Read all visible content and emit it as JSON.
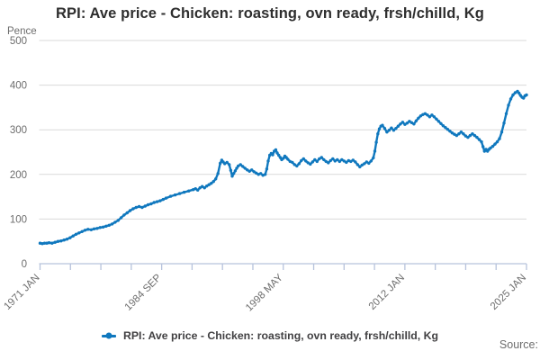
{
  "title": "RPI: Ave price - Chicken: roasting, ovn ready, frsh/chilld, Kg",
  "y_axis_label": "Pence",
  "source_label": "Source:",
  "legend": {
    "marker_icon": "line-with-dot-icon",
    "label": "RPI: Ave price - Chicken: roasting, ovn ready, frsh/chilld, Kg"
  },
  "colors": {
    "line": "#1078be",
    "grid": "#d9d9d9",
    "axis": "#b7c3dc",
    "tick_text": "#6d6d6d",
    "title_text": "#2e2e2e",
    "legend_text": "#414042"
  },
  "chart_data": {
    "type": "line",
    "title": "RPI: Ave price - Chicken: roasting, ovn ready, frsh/chilld, Kg",
    "xlabel": "",
    "ylabel": "Pence",
    "ylim": [
      0,
      500
    ],
    "yticks": [
      0,
      100,
      200,
      300,
      400,
      500
    ],
    "grid": "horizontal",
    "legend_position": "bottom-center",
    "x_range_years": [
      1971.0,
      2025.0
    ],
    "xtick_count": 17,
    "xtick_labels": [
      {
        "pos": 0,
        "label": "1971 JAN"
      },
      {
        "pos": 4,
        "label": "1984 SEP"
      },
      {
        "pos": 8,
        "label": "1998 MAY"
      },
      {
        "pos": 12,
        "label": "2012 JAN"
      },
      {
        "pos": 16,
        "label": "2025 JAN"
      }
    ],
    "series": [
      {
        "name": "RPI: Ave price - Chicken: roasting, ovn ready, frsh/chilld, Kg",
        "points": [
          [
            1971.0,
            46
          ],
          [
            1971.25,
            45
          ],
          [
            1971.5,
            46
          ],
          [
            1971.75,
            46
          ],
          [
            1972.0,
            47
          ],
          [
            1972.33,
            46
          ],
          [
            1972.67,
            48
          ],
          [
            1973.0,
            50
          ],
          [
            1973.33,
            51
          ],
          [
            1973.67,
            53
          ],
          [
            1974.0,
            55
          ],
          [
            1974.33,
            58
          ],
          [
            1974.67,
            62
          ],
          [
            1975.0,
            66
          ],
          [
            1975.33,
            69
          ],
          [
            1975.67,
            72
          ],
          [
            1976.0,
            75
          ],
          [
            1976.33,
            77
          ],
          [
            1976.67,
            76
          ],
          [
            1977.0,
            78
          ],
          [
            1977.33,
            79
          ],
          [
            1977.67,
            81
          ],
          [
            1978.0,
            82
          ],
          [
            1978.33,
            84
          ],
          [
            1978.67,
            86
          ],
          [
            1979.0,
            89
          ],
          [
            1979.33,
            93
          ],
          [
            1979.67,
            97
          ],
          [
            1980.0,
            103
          ],
          [
            1980.33,
            109
          ],
          [
            1980.67,
            114
          ],
          [
            1981.0,
            119
          ],
          [
            1981.33,
            123
          ],
          [
            1981.67,
            126
          ],
          [
            1982.0,
            128
          ],
          [
            1982.33,
            126
          ],
          [
            1982.67,
            129
          ],
          [
            1983.0,
            132
          ],
          [
            1983.33,
            134
          ],
          [
            1983.67,
            137
          ],
          [
            1984.0,
            139
          ],
          [
            1984.33,
            141
          ],
          [
            1984.67,
            144
          ],
          [
            1985.0,
            147
          ],
          [
            1985.5,
            151
          ],
          [
            1986.0,
            154
          ],
          [
            1986.5,
            157
          ],
          [
            1987.0,
            160
          ],
          [
            1987.5,
            163
          ],
          [
            1988.0,
            166
          ],
          [
            1988.25,
            168
          ],
          [
            1988.5,
            165
          ],
          [
            1988.75,
            170
          ],
          [
            1989.0,
            173
          ],
          [
            1989.25,
            170
          ],
          [
            1989.5,
            174
          ],
          [
            1989.75,
            177
          ],
          [
            1990.0,
            180
          ],
          [
            1990.25,
            184
          ],
          [
            1990.5,
            190
          ],
          [
            1990.75,
            202
          ],
          [
            1991.0,
            225
          ],
          [
            1991.17,
            232
          ],
          [
            1991.33,
            228
          ],
          [
            1991.5,
            224
          ],
          [
            1991.75,
            227
          ],
          [
            1992.0,
            222
          ],
          [
            1992.17,
            209
          ],
          [
            1992.33,
            196
          ],
          [
            1992.5,
            202
          ],
          [
            1992.67,
            208
          ],
          [
            1992.83,
            214
          ],
          [
            1993.0,
            219
          ],
          [
            1993.25,
            222
          ],
          [
            1993.5,
            218
          ],
          [
            1993.75,
            214
          ],
          [
            1994.0,
            210
          ],
          [
            1994.25,
            207
          ],
          [
            1994.5,
            210
          ],
          [
            1994.75,
            206
          ],
          [
            1995.0,
            203
          ],
          [
            1995.25,
            200
          ],
          [
            1995.5,
            202
          ],
          [
            1995.75,
            198
          ],
          [
            1996.0,
            200
          ],
          [
            1996.17,
            212
          ],
          [
            1996.33,
            230
          ],
          [
            1996.5,
            243
          ],
          [
            1996.67,
            247
          ],
          [
            1996.83,
            244
          ],
          [
            1997.0,
            252
          ],
          [
            1997.17,
            255
          ],
          [
            1997.33,
            248
          ],
          [
            1997.5,
            243
          ],
          [
            1997.67,
            238
          ],
          [
            1997.83,
            233
          ],
          [
            1998.0,
            236
          ],
          [
            1998.17,
            241
          ],
          [
            1998.33,
            238
          ],
          [
            1998.5,
            234
          ],
          [
            1998.75,
            229
          ],
          [
            1999.0,
            227
          ],
          [
            1999.25,
            222
          ],
          [
            1999.5,
            219
          ],
          [
            1999.75,
            224
          ],
          [
            2000.0,
            231
          ],
          [
            2000.25,
            235
          ],
          [
            2000.5,
            230
          ],
          [
            2000.75,
            226
          ],
          [
            2001.0,
            223
          ],
          [
            2001.25,
            228
          ],
          [
            2001.5,
            233
          ],
          [
            2001.75,
            229
          ],
          [
            2002.0,
            235
          ],
          [
            2002.25,
            238
          ],
          [
            2002.5,
            233
          ],
          [
            2002.75,
            229
          ],
          [
            2003.0,
            226
          ],
          [
            2003.25,
            231
          ],
          [
            2003.5,
            235
          ],
          [
            2003.75,
            230
          ],
          [
            2004.0,
            233
          ],
          [
            2004.25,
            229
          ],
          [
            2004.5,
            233
          ],
          [
            2004.75,
            230
          ],
          [
            2005.0,
            227
          ],
          [
            2005.25,
            231
          ],
          [
            2005.5,
            229
          ],
          [
            2005.75,
            232
          ],
          [
            2006.0,
            228
          ],
          [
            2006.25,
            222
          ],
          [
            2006.5,
            217
          ],
          [
            2006.75,
            221
          ],
          [
            2007.0,
            224
          ],
          [
            2007.25,
            228
          ],
          [
            2007.5,
            225
          ],
          [
            2007.75,
            230
          ],
          [
            2008.0,
            237
          ],
          [
            2008.17,
            252
          ],
          [
            2008.33,
            272
          ],
          [
            2008.5,
            291
          ],
          [
            2008.67,
            302
          ],
          [
            2008.83,
            308
          ],
          [
            2009.0,
            310
          ],
          [
            2009.25,
            303
          ],
          [
            2009.5,
            295
          ],
          [
            2009.75,
            299
          ],
          [
            2010.0,
            304
          ],
          [
            2010.25,
            299
          ],
          [
            2010.5,
            303
          ],
          [
            2010.75,
            308
          ],
          [
            2011.0,
            313
          ],
          [
            2011.25,
            317
          ],
          [
            2011.5,
            312
          ],
          [
            2011.75,
            315
          ],
          [
            2012.0,
            319
          ],
          [
            2012.25,
            316
          ],
          [
            2012.5,
            313
          ],
          [
            2012.75,
            320
          ],
          [
            2013.0,
            326
          ],
          [
            2013.25,
            331
          ],
          [
            2013.5,
            334
          ],
          [
            2013.75,
            336
          ],
          [
            2014.0,
            333
          ],
          [
            2014.25,
            329
          ],
          [
            2014.5,
            333
          ],
          [
            2014.75,
            329
          ],
          [
            2015.0,
            324
          ],
          [
            2015.25,
            319
          ],
          [
            2015.5,
            314
          ],
          [
            2015.75,
            309
          ],
          [
            2016.0,
            305
          ],
          [
            2016.25,
            301
          ],
          [
            2016.5,
            297
          ],
          [
            2016.75,
            293
          ],
          [
            2017.0,
            290
          ],
          [
            2017.25,
            287
          ],
          [
            2017.5,
            291
          ],
          [
            2017.75,
            295
          ],
          [
            2018.0,
            291
          ],
          [
            2018.25,
            286
          ],
          [
            2018.5,
            283
          ],
          [
            2018.75,
            287
          ],
          [
            2019.0,
            291
          ],
          [
            2019.25,
            287
          ],
          [
            2019.5,
            283
          ],
          [
            2019.75,
            278
          ],
          [
            2020.0,
            273
          ],
          [
            2020.17,
            262
          ],
          [
            2020.33,
            252
          ],
          [
            2020.5,
            256
          ],
          [
            2020.67,
            252
          ],
          [
            2020.83,
            256
          ],
          [
            2021.0,
            259
          ],
          [
            2021.25,
            263
          ],
          [
            2021.5,
            268
          ],
          [
            2021.75,
            273
          ],
          [
            2022.0,
            280
          ],
          [
            2022.25,
            295
          ],
          [
            2022.5,
            315
          ],
          [
            2022.75,
            336
          ],
          [
            2023.0,
            355
          ],
          [
            2023.25,
            369
          ],
          [
            2023.5,
            378
          ],
          [
            2023.75,
            383
          ],
          [
            2024.0,
            386
          ],
          [
            2024.17,
            382
          ],
          [
            2024.33,
            377
          ],
          [
            2024.5,
            373
          ],
          [
            2024.67,
            371
          ],
          [
            2024.83,
            376
          ],
          [
            2025.0,
            378
          ]
        ]
      }
    ]
  }
}
